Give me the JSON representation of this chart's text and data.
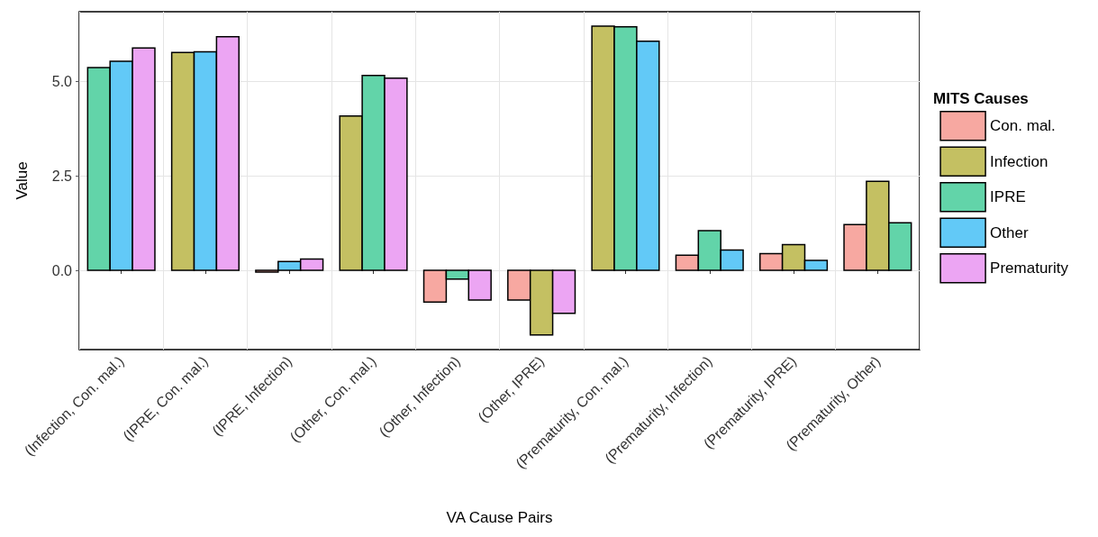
{
  "chart_data": {
    "type": "bar",
    "xlabel": "VA Cause Pairs",
    "ylabel": "Value",
    "legend_title": "MITS Causes",
    "categories": [
      "(Infection, Con. mal.)",
      "(IPRE, Con. mal.)",
      "(IPRE, Infection)",
      "(Other, Con. mal.)",
      "(Other, Infection)",
      "(Other, IPRE)",
      "(Prematurity, Con. mal.)",
      "(Prematurity, Infection)",
      "(Prematurity, IPRE)",
      "(Prematurity, Other)"
    ],
    "series": [
      {
        "name": "Con. mal.",
        "color": "#f7a8a1",
        "values": [
          null,
          null,
          -0.05,
          null,
          -0.84,
          -0.79,
          null,
          0.4,
          0.44,
          1.21
        ]
      },
      {
        "name": "Infection",
        "color": "#c4c062",
        "values": [
          null,
          5.77,
          null,
          4.09,
          null,
          -1.71,
          6.47,
          null,
          0.68,
          2.36
        ]
      },
      {
        "name": "IPRE",
        "color": "#62d4a9",
        "values": [
          5.37,
          null,
          null,
          5.16,
          -0.23,
          null,
          6.45,
          1.05,
          null,
          1.26
        ]
      },
      {
        "name": "Other",
        "color": "#62c9f7",
        "values": [
          5.54,
          5.79,
          0.23,
          null,
          null,
          null,
          6.07,
          0.54,
          0.26,
          null
        ]
      },
      {
        "name": "Prematurity",
        "color": "#eca5f3",
        "values": [
          5.89,
          6.19,
          0.3,
          5.09,
          -0.79,
          -1.14,
          null,
          null,
          null,
          null
        ]
      }
    ],
    "ylim": [
      -2.1,
      6.85
    ],
    "yticks": [
      {
        "value": 0,
        "label": "0.0"
      },
      {
        "value": 2.5,
        "label": "2.5"
      },
      {
        "value": 5,
        "label": "5.0"
      }
    ],
    "grid": true,
    "legend": "right"
  }
}
